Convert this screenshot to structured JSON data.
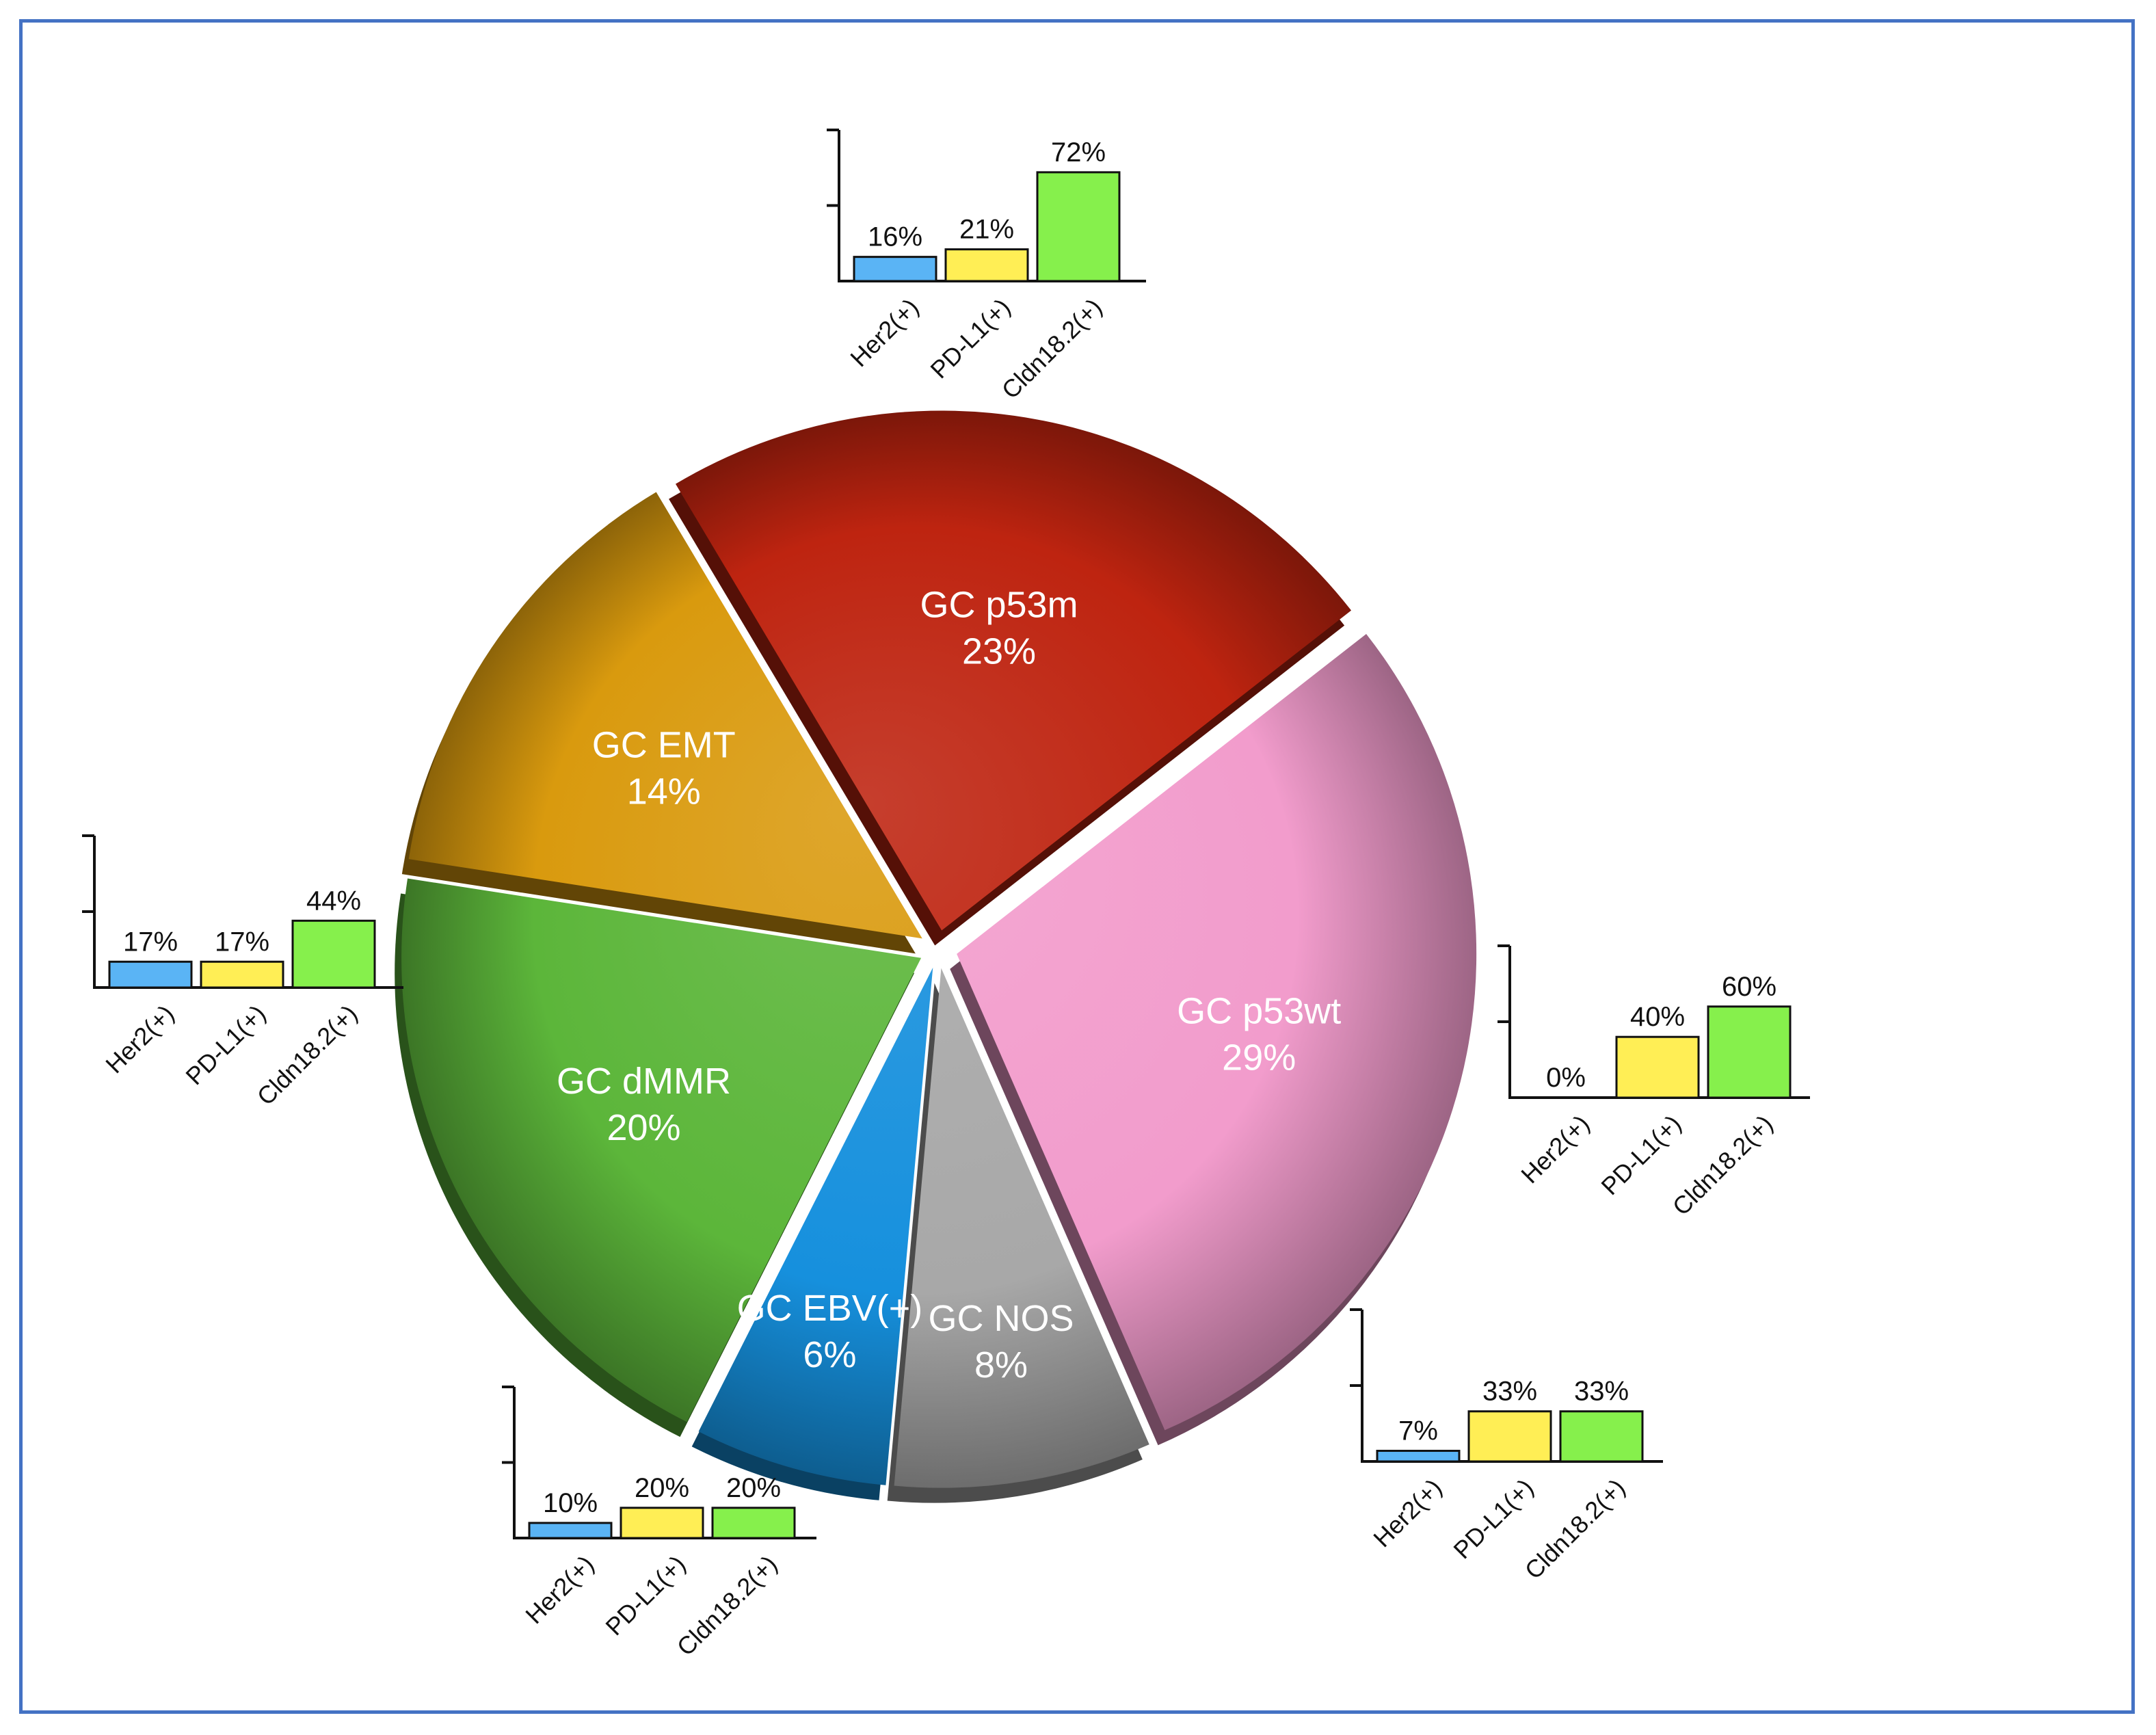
{
  "colors": {
    "frame": "#4472c4",
    "her2": "#5ab4f5",
    "pdl1": "#ffee55",
    "cldn": "#86f04c"
  },
  "chart_data": [
    {
      "type": "pie",
      "title": "",
      "legend": "none",
      "slices": [
        {
          "label": "GC p53wt",
          "value": 29,
          "value_label": "29%",
          "color": "#f29ccc"
        },
        {
          "label": "GC NOS",
          "value": 8,
          "value_label": "8%",
          "color": "#a8a8a8"
        },
        {
          "label": "GC EBV(+)",
          "value": 6,
          "value_label": "6%",
          "color": "#1690dd"
        },
        {
          "label": "GC dMMR",
          "value": 20,
          "value_label": "20%",
          "color": "#5cb63a"
        },
        {
          "label": "GC EMT",
          "value": 14,
          "value_label": "14%",
          "color": "#d99a0e"
        },
        {
          "label": "GC p53m",
          "value": 23,
          "value_label": "23%",
          "color": "#be2410"
        }
      ]
    },
    {
      "type": "bar",
      "subtype": "GC p53wt",
      "categories": [
        "Her2(+)",
        "PD-L1(+)",
        "Cldn18.2(+)"
      ],
      "values": [
        16,
        21,
        72
      ],
      "value_labels": [
        "16%",
        "21%",
        "72%"
      ],
      "ylim": [
        0,
        100
      ]
    },
    {
      "type": "bar",
      "subtype": "GC p53m",
      "categories": [
        "Her2(+)",
        "PD-L1(+)",
        "Cldn18.2(+)"
      ],
      "values": [
        17,
        17,
        44
      ],
      "value_labels": [
        "17%",
        "17%",
        "44%"
      ],
      "ylim": [
        0,
        100
      ]
    },
    {
      "type": "bar",
      "subtype": "GC EBV(+)",
      "categories": [
        "Her2(+)",
        "PD-L1(+)",
        "Cldn18.2(+)"
      ],
      "values": [
        0,
        40,
        60
      ],
      "value_labels": [
        "0%",
        "40%",
        "60%"
      ],
      "ylim": [
        0,
        100
      ]
    },
    {
      "type": "bar",
      "subtype": "GC dMMR",
      "categories": [
        "Her2(+)",
        "PD-L1(+)",
        "Cldn18.2(+)"
      ],
      "values": [
        7,
        33,
        33
      ],
      "value_labels": [
        "7%",
        "33%",
        "33%"
      ],
      "ylim": [
        0,
        100
      ]
    },
    {
      "type": "bar",
      "subtype": "GC EMT",
      "categories": [
        "Her2(+)",
        "PD-L1(+)",
        "Cldn18.2(+)"
      ],
      "values": [
        10,
        20,
        20
      ],
      "value_labels": [
        "10%",
        "20%",
        "20%"
      ],
      "ylim": [
        0,
        100
      ]
    }
  ]
}
